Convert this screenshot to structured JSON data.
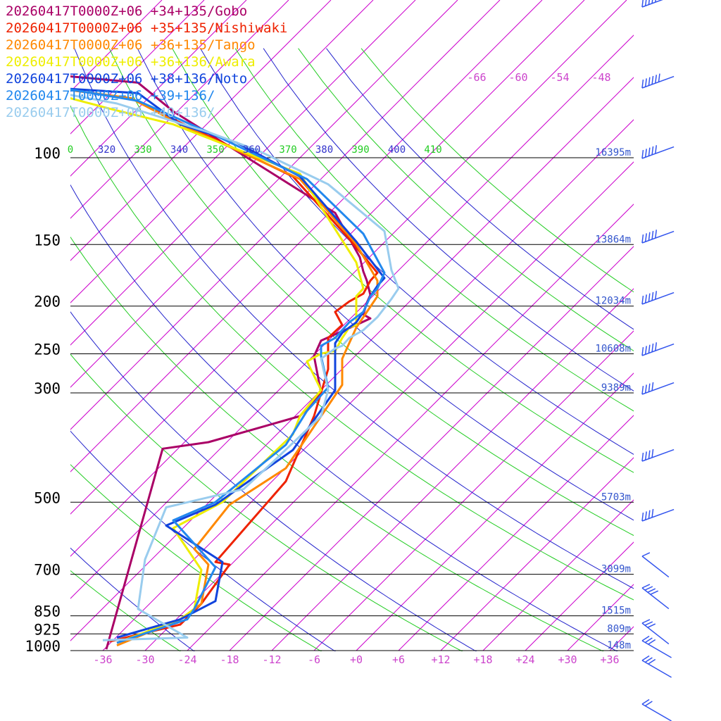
{
  "chart_data": {
    "type": "line",
    "title": "",
    "xlabel": "",
    "ylabel": "",
    "x_ticks": [
      "-36",
      "-30",
      "-24",
      "-18",
      "-12",
      "-6",
      "+0",
      "+6",
      "+12",
      "+18",
      "+24",
      "+30",
      "+36"
    ],
    "upper_temp_labels": [
      "-66",
      "-60",
      "-54",
      "-48"
    ],
    "theta_labels": [
      {
        "text": "0",
        "color": "#22cc22"
      },
      {
        "text": "320",
        "color": "#3333cc"
      },
      {
        "text": "330",
        "color": "#22cc22"
      },
      {
        "text": "340",
        "color": "#3333cc"
      },
      {
        "text": "350",
        "color": "#22cc22"
      },
      {
        "text": "360",
        "color": "#3333cc"
      },
      {
        "text": "370",
        "color": "#22cc22"
      },
      {
        "text": "380",
        "color": "#3333cc"
      },
      {
        "text": "390",
        "color": "#22cc22"
      },
      {
        "text": "400",
        "color": "#3333cc"
      },
      {
        "text": "410",
        "color": "#22cc22"
      }
    ],
    "pressure_levels": [
      "100",
      "150",
      "200",
      "250",
      "300",
      "500",
      "700",
      "850",
      "925",
      "1000"
    ],
    "height_labels": [
      "16395m",
      "13864m",
      "12034m",
      "10608m",
      "9389m",
      "5703m",
      "3099m",
      "1515m",
      "809m",
      "148m"
    ],
    "colors": {
      "isotherm": "#cc00cc",
      "dry_adiabat": "#2222cc",
      "moist_adiabat": "#22cc22",
      "isobar": "#000000",
      "wind_barb": "#3355ee"
    },
    "series": [
      {
        "name": "20260417T0000Z+06 +34+135/Gobo",
        "color": "#aa0066",
        "points": [
          [
            -35.5,
            0.5
          ],
          [
            -27.5,
            77.5
          ],
          [
            -21,
            80
          ],
          [
            -8,
            90
          ],
          [
            -5,
            99
          ],
          [
            -6,
            113
          ],
          [
            -5,
            119
          ],
          [
            0,
            125
          ],
          [
            2,
            127.5
          ],
          [
            1,
            129
          ],
          [
            1.5,
            133.5
          ],
          [
            2,
            136.5
          ],
          [
            1.5,
            142
          ],
          [
            1,
            145.5
          ],
          [
            0.5,
            151
          ],
          [
            -3,
            168
          ],
          [
            -13,
            185
          ],
          [
            -26,
            207
          ],
          [
            -31,
            218
          ],
          [
            -43,
            221
          ],
          [
            -52,
            233
          ],
          [
            -61,
            250
          ]
        ]
      },
      {
        "name": "20260417T0000Z+06 +35+135/Nishiwaki",
        "color": "#ee2200",
        "points": [
          [
            -35,
            3.5
          ],
          [
            -25,
            10
          ],
          [
            -22,
            18
          ],
          [
            -18,
            33
          ],
          [
            -20,
            34
          ],
          [
            -10,
            65
          ],
          [
            -6,
            90
          ],
          [
            -4,
            108
          ],
          [
            -4,
            120
          ],
          [
            -2,
            125
          ],
          [
            -3,
            130
          ],
          [
            -1,
            134
          ],
          [
            1,
            137
          ],
          [
            2,
            142
          ],
          [
            3,
            145
          ],
          [
            -1,
            158
          ],
          [
            -9,
            182
          ],
          [
            -26,
            204
          ],
          [
            -32,
            212
          ],
          [
            -43,
            216
          ],
          [
            -52,
            230
          ],
          [
            -58,
            250
          ]
        ]
      },
      {
        "name": "20260417T0000Z+06 +36+135/Tango",
        "color": "#ff8800",
        "points": [
          [
            -34,
            2
          ],
          [
            -25,
            12
          ],
          [
            -22,
            18
          ],
          [
            -21,
            33
          ],
          [
            -23,
            39
          ],
          [
            -18,
            56
          ],
          [
            -10,
            70
          ],
          [
            -6,
            86
          ],
          [
            -2,
            102
          ],
          [
            -2,
            112
          ],
          [
            -1,
            118
          ],
          [
            0,
            124
          ],
          [
            1,
            128
          ],
          [
            2,
            132
          ],
          [
            3,
            136
          ],
          [
            3,
            142
          ],
          [
            0,
            156
          ],
          [
            -8,
            181
          ],
          [
            -25,
            202
          ],
          [
            -32,
            212
          ],
          [
            -43,
            216
          ],
          [
            -51,
            230
          ],
          [
            -57,
            250
          ]
        ]
      },
      {
        "name": "20260417T0000Z+06 +36+136/Awara",
        "color": "#eeee00",
        "points": [
          [
            -34,
            3
          ],
          [
            -25,
            12
          ],
          [
            -23,
            16
          ],
          [
            -22,
            31
          ],
          [
            -26,
            47
          ],
          [
            -19,
            57
          ],
          [
            -9,
            83
          ],
          [
            -8,
            90
          ],
          [
            -5,
            100
          ],
          [
            -7,
            111
          ],
          [
            -5,
            114
          ],
          [
            -3,
            115
          ],
          [
            -2,
            120
          ],
          [
            -1,
            124
          ],
          [
            0,
            125
          ],
          [
            0,
            130
          ],
          [
            0,
            136
          ],
          [
            1,
            139
          ],
          [
            0,
            149
          ],
          [
            -8,
            183
          ],
          [
            -26,
            202
          ],
          [
            -35,
            208
          ],
          [
            -42,
            213
          ],
          [
            -51,
            225
          ],
          [
            -56,
            250
          ]
        ]
      },
      {
        "name": "20260417T0000Z+06 +38+136/Noto",
        "color": "#1144dd",
        "points": [
          [
            -34,
            5
          ],
          [
            -25,
            12
          ],
          [
            -20,
            19
          ],
          [
            -19,
            34
          ],
          [
            -27,
            48
          ],
          [
            -20,
            56
          ],
          [
            -9,
            77
          ],
          [
            -3,
            100
          ],
          [
            -3,
            112
          ],
          [
            -3,
            118
          ],
          [
            -2,
            122
          ],
          [
            0,
            126
          ],
          [
            1,
            130
          ],
          [
            2,
            136
          ],
          [
            3,
            140
          ],
          [
            4,
            143
          ],
          [
            0,
            157
          ],
          [
            -8,
            182
          ],
          [
            -17,
            195
          ],
          [
            -25,
            202
          ],
          [
            -31,
            214
          ],
          [
            -43,
            216
          ],
          [
            -51,
            227
          ],
          [
            -59,
            250
          ]
        ]
      },
      {
        "name": "20260417T0000Z+06 +39+136/",
        "color": "#2288ee",
        "points": [
          [
            -34,
            3
          ],
          [
            -24,
            12
          ],
          [
            -23,
            16
          ],
          [
            -20,
            32
          ],
          [
            -26,
            50
          ],
          [
            -20,
            57
          ],
          [
            -10,
            79
          ],
          [
            -7,
            92
          ],
          [
            -4,
            101
          ],
          [
            -5,
            113
          ],
          [
            -5,
            117
          ],
          [
            -3,
            120
          ],
          [
            -2,
            123
          ],
          [
            -1,
            126
          ],
          [
            1,
            130
          ],
          [
            2,
            136
          ],
          [
            3,
            139
          ],
          [
            4,
            145
          ],
          [
            1,
            160
          ],
          [
            -7,
            181
          ],
          [
            -21,
            199
          ],
          [
            -31,
            211
          ],
          [
            -42,
            216
          ],
          [
            -51,
            226
          ],
          [
            -59,
            250
          ]
        ]
      },
      {
        "name": "20260417T0000Z+06 +40+136/",
        "color": "#99ccee",
        "points": [
          [
            -36,
            4
          ],
          [
            -24,
            5
          ],
          [
            -31,
            16
          ],
          [
            -30,
            35
          ],
          [
            -27,
            55
          ],
          [
            -16,
            62
          ],
          [
            -12,
            72
          ],
          [
            -5,
            90
          ],
          [
            -4,
            100
          ],
          [
            -5,
            112
          ],
          [
            -3,
            116
          ],
          [
            -2,
            117
          ],
          [
            -1,
            120
          ],
          [
            1,
            123
          ],
          [
            3,
            128
          ],
          [
            5,
            135
          ],
          [
            6,
            139
          ],
          [
            5,
            146
          ],
          [
            4,
            161
          ],
          [
            -4,
            179
          ],
          [
            -14,
            192
          ],
          [
            -21,
            199
          ],
          [
            -34,
            210
          ],
          [
            -42,
            214
          ],
          [
            -51,
            224
          ],
          [
            -59,
            250
          ]
        ]
      }
    ],
    "wind_barbs": [
      {
        "angle": 20,
        "speed": 45
      },
      {
        "angle": 20,
        "speed": 55
      },
      {
        "angle": 20,
        "speed": 50
      },
      {
        "angle": 20,
        "speed": 45
      },
      {
        "angle": 20,
        "speed": 50
      },
      {
        "angle": 20,
        "speed": 45
      },
      {
        "angle": 20,
        "speed": 40
      },
      {
        "angle": 20,
        "speed": 40
      },
      {
        "angle": 20,
        "speed": 35
      },
      {
        "angle": -38,
        "speed": 10
      },
      {
        "angle": -38,
        "speed": 35
      },
      {
        "angle": -38,
        "speed": 30
      },
      {
        "angle": -30,
        "speed": 25
      },
      {
        "angle": -30,
        "speed": 25
      },
      {
        "angle": -30,
        "speed": 20
      }
    ]
  }
}
